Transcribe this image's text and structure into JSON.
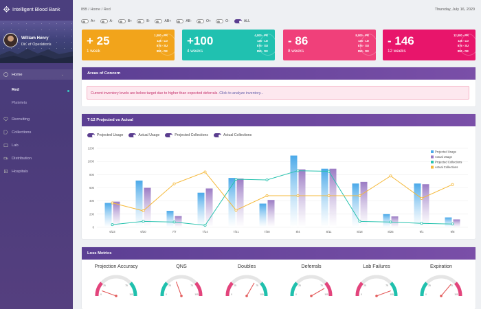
{
  "app": {
    "title": "Intelligent Blood Bank"
  },
  "profile": {
    "name": "William Henry",
    "role": "Dir. of Operations"
  },
  "nav": {
    "home": "Home",
    "sub": [
      "Red",
      "Platelets"
    ],
    "items": [
      "Recruiting",
      "Collections",
      "Lab",
      "Distribution",
      "Hospitals"
    ]
  },
  "breadcrumb": "IBB  /  Home  /  Red",
  "date": "Thursday, July 16, 2020",
  "filters": [
    {
      "label": "A+",
      "on": false
    },
    {
      "label": "A-",
      "on": false
    },
    {
      "label": "B+",
      "on": false
    },
    {
      "label": "B-",
      "on": false
    },
    {
      "label": "AB+",
      "on": false
    },
    {
      "label": "AB-",
      "on": false
    },
    {
      "label": "O+",
      "on": false
    },
    {
      "label": "O-",
      "on": false
    },
    {
      "label": "ALL",
      "on": true
    }
  ],
  "cards": [
    {
      "value": "+ 25",
      "period": "1 week",
      "color": "#f2a41b",
      "rows": [
        "1,000 - PR",
        "125 - LD",
        "875 - SU",
        "850 - DE"
      ]
    },
    {
      "value": "+100",
      "period": "4 weeks",
      "color": "#20c1b0",
      "rows": [
        "4,000 - PR",
        "125 - LD",
        "875 - SU",
        "850 - DE"
      ]
    },
    {
      "value": "- 86",
      "period": "8 weeks",
      "color": "#f0407a",
      "rows": [
        "8,000 - PR",
        "125 - LD",
        "875 - SU",
        "850 - DE"
      ]
    },
    {
      "value": "- 146",
      "period": "12 weeks",
      "color": "#e8156b",
      "rows": [
        "12,000 - PR",
        "125 - LD",
        "875 - SU",
        "850 - DE"
      ]
    }
  ],
  "areas": {
    "title": "Areas of Concern",
    "message": "Current inventory levels are below target due to higher than expected deferrals.",
    "link": "Click to analyze inventory..."
  },
  "chart_panel": {
    "title": "T-12 Projected vs Actual",
    "toggles": [
      "Projected Usage",
      "Actual Usage",
      "Projected Collections",
      "Actual Collections"
    ]
  },
  "loss": {
    "title": "Loss Metrics",
    "gauges": [
      "Projection Accuracy",
      "QNS",
      "Doubles",
      "Deferrals",
      "Lab Failures",
      "Expiration"
    ],
    "ticks": [
      "0",
      "100",
      "25",
      "75"
    ]
  },
  "colors": {
    "purple": "#5b3f93",
    "projected_usage": "#4aa9e9",
    "actual_usage": "#9b7bc4",
    "projected_collections": "#27c2ae",
    "actual_collections": "#f5b93a"
  },
  "chart_data": {
    "type": "bar",
    "categories": [
      "6/23",
      "6/30",
      "7/7",
      "7/14",
      "7/21",
      "7/28",
      "8/4",
      "8/11",
      "8/18",
      "8/25",
      "9/1",
      "9/8"
    ],
    "ylim": [
      0,
      1200
    ],
    "yticks": [
      0,
      200,
      400,
      600,
      800,
      1000,
      1200
    ],
    "series": [
      {
        "name": "Projected Usage",
        "type": "bar",
        "values": [
          370,
          710,
          250,
          525,
          750,
          360,
          1090,
          890,
          665,
          200,
          665,
          150
        ]
      },
      {
        "name": "Actual Usage",
        "type": "bar",
        "values": [
          390,
          600,
          170,
          590,
          740,
          415,
          880,
          890,
          690,
          165,
          655,
          120
        ]
      },
      {
        "name": "Projected Collections",
        "type": "line",
        "values": [
          40,
          90,
          80,
          30,
          730,
          720,
          860,
          850,
          90,
          80,
          60,
          50
        ]
      },
      {
        "name": "Actual Collections",
        "type": "line",
        "values": [
          370,
          250,
          660,
          840,
          260,
          480,
          480,
          480,
          480,
          780,
          440,
          650
        ]
      }
    ],
    "legend": "top-right"
  }
}
